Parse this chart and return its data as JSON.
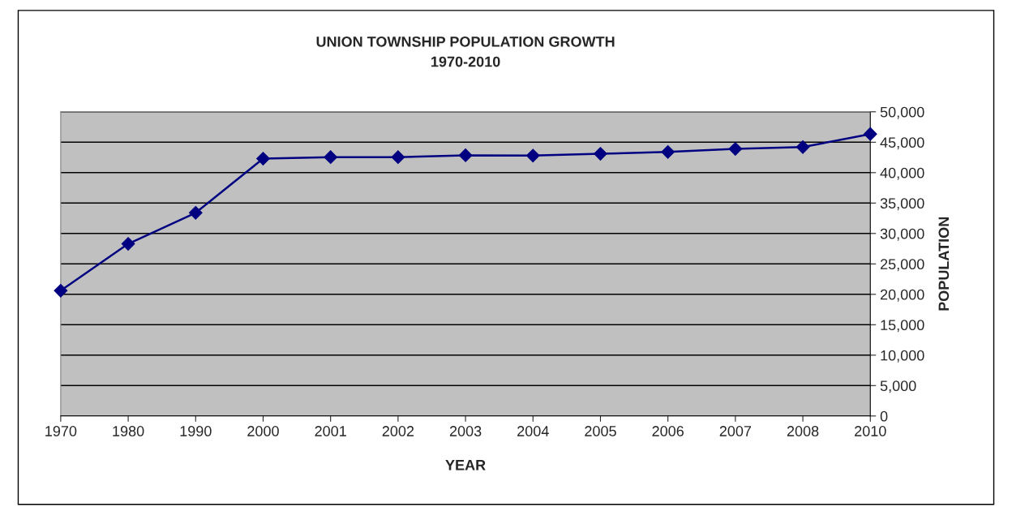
{
  "chart_data": {
    "type": "line",
    "title": "UNION TOWNSHIP POPULATION GROWTH\n1970-2010",
    "xlabel": "YEAR",
    "ylabel": "POPULATION",
    "categories": [
      "1970",
      "1980",
      "1990",
      "2000",
      "2001",
      "2002",
      "2003",
      "2004",
      "2005",
      "2006",
      "2007",
      "2008",
      "2010"
    ],
    "series": [
      {
        "color": "#000080",
        "values": [
          20600,
          28300,
          33400,
          42300,
          42550,
          42550,
          42850,
          42800,
          43100,
          43400,
          43900,
          44200,
          46350
        ]
      }
    ],
    "ylim": [
      0,
      50000
    ],
    "yticks": [
      {
        "value": 0,
        "label": "0"
      },
      {
        "value": 5000,
        "label": "5,000"
      },
      {
        "value": 10000,
        "label": "10,000"
      },
      {
        "value": 15000,
        "label": "15,000"
      },
      {
        "value": 20000,
        "label": "20,000"
      },
      {
        "value": 25000,
        "label": "25,000"
      },
      {
        "value": 30000,
        "label": "30,000"
      },
      {
        "value": 35000,
        "label": "35,000"
      },
      {
        "value": 40000,
        "label": "40,000"
      },
      {
        "value": 45000,
        "label": "45,000"
      },
      {
        "value": 50000,
        "label": "50,000"
      }
    ],
    "grid": "y",
    "marker": "diamond",
    "line_style": "solid",
    "legend": false
  }
}
